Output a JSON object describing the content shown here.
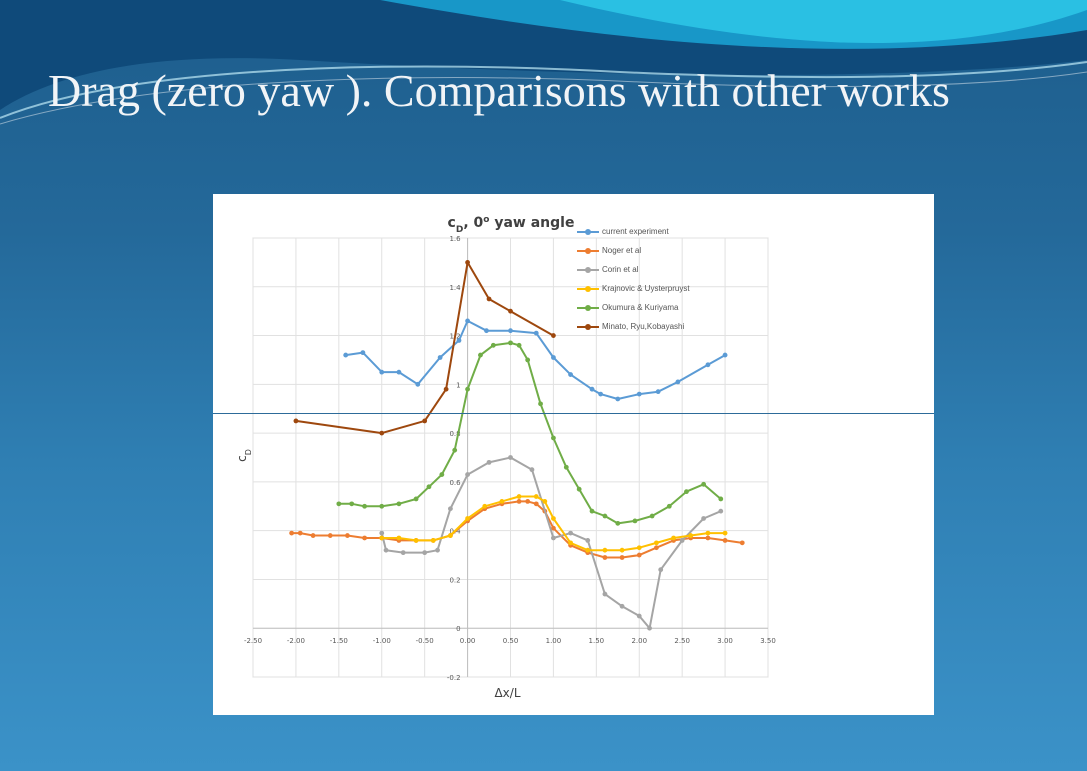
{
  "slide": {
    "title": "Drag (zero yaw ). Comparisons with other works"
  },
  "colors": {
    "background_top": "#1d5d8c",
    "background_bottom": "#3b92c8",
    "swoosh_light": "#2cc4e6",
    "title_text": "#f1f4f7"
  },
  "chart_data": {
    "type": "line",
    "title": "c",
    "title_sub": "D",
    "title_rest": ", 0",
    "title_sup": "o",
    "title_end": " yaw angle",
    "xlabel": "Δx/L",
    "ylabel": "c",
    "ylabel_sub": "D",
    "xlim": [
      -2.5,
      3.5
    ],
    "ylim": [
      -0.2,
      1.6
    ],
    "xticks": [
      -2.5,
      -2.0,
      -1.5,
      -1.0,
      -0.5,
      0.0,
      0.5,
      1.0,
      1.5,
      2.0,
      2.5,
      3.0,
      3.5
    ],
    "xtick_labels": [
      "-2.50",
      "-2.00",
      "-1.50",
      "-1.00",
      "-0.50",
      "0.00",
      "0.50",
      "1.00",
      "1.50",
      "2.00",
      "2.50",
      "3.00",
      "3.50"
    ],
    "yticks": [
      -0.2,
      0,
      0.2,
      0.4,
      0.6,
      0.8,
      1.0,
      1.2,
      1.4,
      1.6
    ],
    "ytick_labels": [
      "-0.2",
      "0",
      "0.2",
      "0.4",
      "0.6",
      "0.8",
      "1",
      "1.2",
      "1.4",
      "1.6"
    ],
    "grid": true,
    "legend_position": "right",
    "series": [
      {
        "name": "current experiment",
        "color": "#5b9bd5",
        "x": [
          -1.42,
          -1.22,
          -1.0,
          -0.8,
          -0.58,
          -0.32,
          -0.1,
          0.0,
          0.22,
          0.5,
          0.8,
          1.0,
          1.2,
          1.45,
          1.55,
          1.75,
          2.0,
          2.22,
          2.45,
          2.8,
          3.0
        ],
        "y": [
          1.12,
          1.13,
          1.05,
          1.05,
          1.0,
          1.11,
          1.18,
          1.26,
          1.22,
          1.22,
          1.21,
          1.11,
          1.04,
          0.98,
          0.96,
          0.94,
          0.96,
          0.97,
          1.01,
          1.08,
          1.12
        ]
      },
      {
        "name": "Noger et al",
        "color": "#ed7d31",
        "x": [
          -2.05,
          -1.95,
          -1.8,
          -1.6,
          -1.4,
          -1.2,
          -1.0,
          -0.8,
          -0.6,
          -0.4,
          -0.2,
          0.0,
          0.2,
          0.4,
          0.6,
          0.7,
          0.8,
          0.9,
          1.0,
          1.2,
          1.4,
          1.6,
          1.8,
          2.0,
          2.2,
          2.4,
          2.6,
          2.8,
          3.0,
          3.2
        ],
        "y": [
          0.39,
          0.39,
          0.38,
          0.38,
          0.38,
          0.37,
          0.37,
          0.36,
          0.36,
          0.36,
          0.38,
          0.44,
          0.49,
          0.51,
          0.52,
          0.52,
          0.51,
          0.48,
          0.41,
          0.34,
          0.31,
          0.29,
          0.29,
          0.3,
          0.33,
          0.36,
          0.37,
          0.37,
          0.36,
          0.35
        ]
      },
      {
        "name": "Corin et al",
        "color": "#a5a5a5",
        "x": [
          -1.0,
          -0.95,
          -0.75,
          -0.5,
          -0.35,
          -0.2,
          0.0,
          0.25,
          0.5,
          0.75,
          1.0,
          1.2,
          1.4,
          1.6,
          1.8,
          2.0,
          2.12,
          2.25,
          2.5,
          2.75,
          2.95
        ],
        "y": [
          0.39,
          0.32,
          0.31,
          0.31,
          0.32,
          0.49,
          0.63,
          0.68,
          0.7,
          0.65,
          0.37,
          0.39,
          0.36,
          0.14,
          0.09,
          0.05,
          0.0,
          0.24,
          0.36,
          0.45,
          0.48
        ]
      },
      {
        "name": "Krajnovic & Uysterpruyst",
        "color": "#ffc000",
        "x": [
          -1.0,
          -0.8,
          -0.6,
          -0.4,
          -0.2,
          0.0,
          0.2,
          0.4,
          0.6,
          0.8,
          0.9,
          1.0,
          1.2,
          1.4,
          1.6,
          1.8,
          2.0,
          2.2,
          2.4,
          2.6,
          2.8,
          3.0
        ],
        "y": [
          0.37,
          0.37,
          0.36,
          0.36,
          0.38,
          0.45,
          0.5,
          0.52,
          0.54,
          0.54,
          0.52,
          0.45,
          0.35,
          0.32,
          0.32,
          0.32,
          0.33,
          0.35,
          0.37,
          0.38,
          0.39,
          0.39
        ]
      },
      {
        "name": "Okumura & Kuriyama",
        "color": "#70ad47",
        "x": [
          -1.5,
          -1.35,
          -1.2,
          -1.0,
          -0.8,
          -0.6,
          -0.45,
          -0.3,
          -0.15,
          0.0,
          0.15,
          0.3,
          0.5,
          0.6,
          0.7,
          0.85,
          1.0,
          1.15,
          1.3,
          1.45,
          1.6,
          1.75,
          1.95,
          2.15,
          2.35,
          2.55,
          2.75,
          2.95
        ],
        "y": [
          0.51,
          0.51,
          0.5,
          0.5,
          0.51,
          0.53,
          0.58,
          0.63,
          0.73,
          0.98,
          1.12,
          1.16,
          1.17,
          1.16,
          1.1,
          0.92,
          0.78,
          0.66,
          0.57,
          0.48,
          0.46,
          0.43,
          0.44,
          0.46,
          0.5,
          0.56,
          0.59,
          0.53
        ]
      },
      {
        "name": "Minato, Ryu,Kobayashi",
        "color": "#9e480e",
        "x": [
          -2.0,
          -1.0,
          -0.5,
          -0.25,
          0.0,
          0.25,
          0.5,
          1.0
        ],
        "y": [
          0.85,
          0.8,
          0.85,
          0.98,
          1.5,
          1.35,
          1.3,
          1.2
        ]
      }
    ]
  }
}
